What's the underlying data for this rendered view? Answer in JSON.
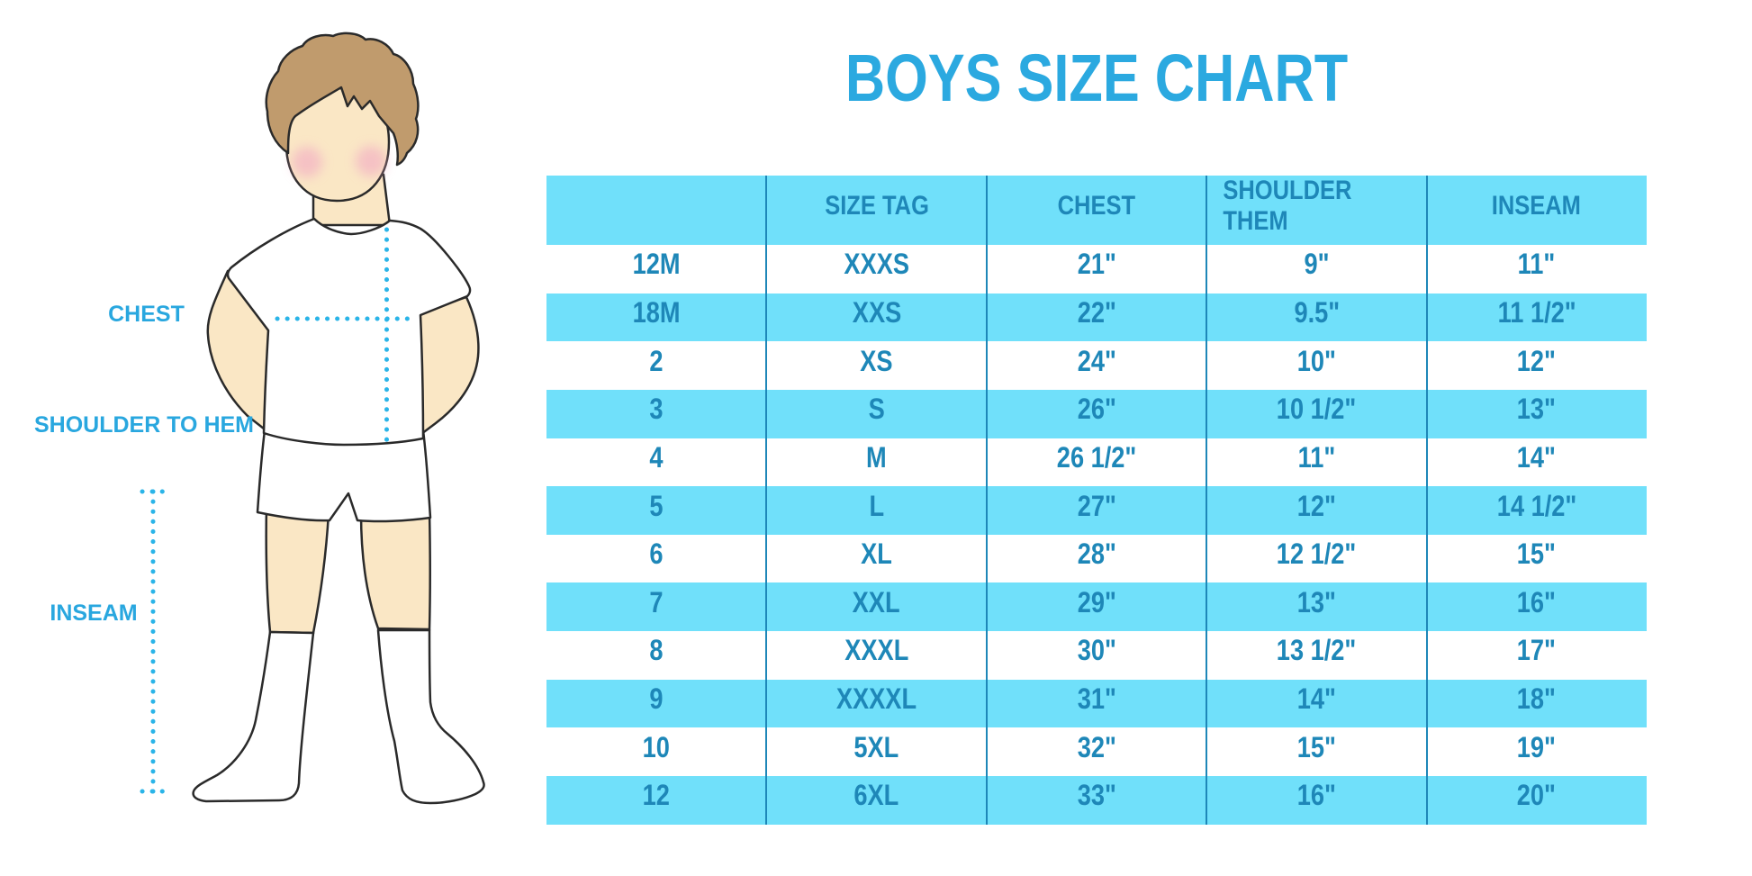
{
  "title": "BOYS SIZE CHART",
  "figure_labels": {
    "chest": "CHEST",
    "shoulder_to_hem": "SHOULDER TO HEM",
    "inseam": "INSEAM"
  },
  "colors": {
    "accent_cyan_fill": "#70e0fa",
    "accent_text_blue": "#1e87b8",
    "title_blue": "#2ba9e0",
    "dotted_line_cyan": "#2ab4e8",
    "skin": "#fae7c5",
    "hair": "#c09b6d",
    "outline": "#2a2a2a",
    "cheek_pink": "#f2a9c4"
  },
  "chart_data": {
    "type": "table",
    "title": "BOYS SIZE CHART",
    "columns": [
      "",
      "SIZE TAG",
      "CHEST",
      "SHOULDER THEM",
      "INSEAM"
    ],
    "rows": [
      [
        "12M",
        "XXXS",
        "21\"",
        "9\"",
        "11\""
      ],
      [
        "18M",
        "XXS",
        "22\"",
        "9.5\"",
        "11 1/2\""
      ],
      [
        "2",
        "XS",
        "24\"",
        "10\"",
        "12\""
      ],
      [
        "3",
        "S",
        "26\"",
        "10 1/2\"",
        "13\""
      ],
      [
        "4",
        "M",
        "26 1/2\"",
        "11\"",
        "14\""
      ],
      [
        "5",
        "L",
        "27\"",
        "12\"",
        "14 1/2\""
      ],
      [
        "6",
        "XL",
        "28\"",
        "12 1/2\"",
        "15\""
      ],
      [
        "7",
        "XXL",
        "29\"",
        "13\"",
        "16\""
      ],
      [
        "8",
        "XXXL",
        "30\"",
        "13 1/2\"",
        "17\""
      ],
      [
        "9",
        "XXXXL",
        "31\"",
        "14\"",
        "18\""
      ],
      [
        "10",
        "5XL",
        "32\"",
        "15\"",
        "19\""
      ],
      [
        "12",
        "6XL",
        "33\"",
        "16\"",
        "20\""
      ]
    ],
    "layout": {
      "header_fill": "#70e0fa",
      "row_alternating": [
        "#ffffff",
        "#70e0fa"
      ],
      "grid": "vertical-separators-only"
    }
  }
}
